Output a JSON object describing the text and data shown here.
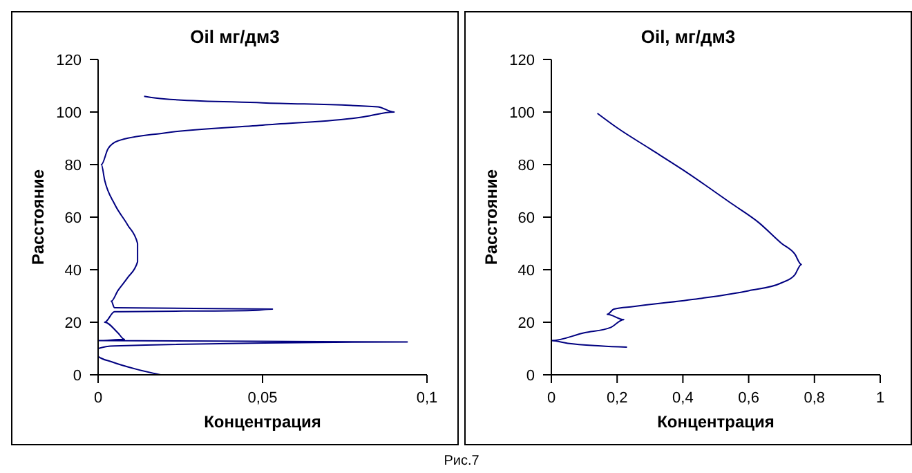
{
  "chart_data": [
    {
      "type": "line",
      "title": "Oil мг/дм3",
      "xlabel": "Концентрация",
      "ylabel": "Расстояние",
      "xlim": [
        0,
        0.1
      ],
      "xticks": [
        {
          "value": 0,
          "label": "0"
        },
        {
          "value": 0.05,
          "label": "0,05"
        },
        {
          "value": 0.1,
          "label": "0,1"
        }
      ],
      "ylim": [
        0,
        120
      ],
      "yticks": [
        {
          "value": 0,
          "label": "0"
        },
        20,
        40,
        60,
        80,
        100,
        120
      ],
      "marker": "none",
      "line_style": "solid",
      "annotations": [
        "Рис.7"
      ],
      "series": [
        {
          "color": "#000080",
          "x": [
            0.019,
            0.012,
            0.004,
            0,
            0,
            0.005,
            0.094,
            0,
            0.008,
            0.006,
            0.002,
            0.005,
            0.047,
            0.053,
            0.005,
            0.004,
            0.006,
            0.009,
            0.012,
            0.012,
            0.009,
            0.005,
            0.002,
            0.001,
            0.003,
            0.006,
            0.02,
            0.05,
            0.08,
            0.09,
            0.085,
            0.05,
            0.02,
            0.014
          ],
          "values": [
            0,
            2,
            5,
            7,
            10,
            11,
            12.5,
            13,
            13.5,
            16,
            20,
            24,
            24.5,
            25,
            25.5,
            28,
            32,
            37,
            43,
            50,
            57,
            65,
            74,
            80,
            86,
            89,
            92,
            95,
            98,
            100,
            102,
            103.5,
            105,
            106
          ]
        }
      ]
    },
    {
      "type": "line",
      "title": "Oil, мг/дм3",
      "xlabel": "Концентрация",
      "ylabel": "Расстояние",
      "xlim": [
        0,
        1
      ],
      "xticks": [
        {
          "value": 0,
          "label": "0"
        },
        {
          "value": 0.2,
          "label": "0,2"
        },
        {
          "value": 0.4,
          "label": "0,4"
        },
        {
          "value": 0.6,
          "label": "0,6"
        },
        {
          "value": 0.8,
          "label": "0,8"
        },
        1
      ],
      "ylim": [
        0,
        120
      ],
      "yticks": [
        {
          "value": 0,
          "label": "0"
        },
        20,
        40,
        60,
        80,
        100,
        120
      ],
      "marker": "none",
      "line_style": "solid",
      "series": [
        {
          "color": "#000080",
          "x": [
            0.23,
            0.15,
            0.05,
            0,
            0.1,
            0.18,
            0.22,
            0.17,
            0.19,
            0.25,
            0.45,
            0.6,
            0.7,
            0.74,
            0.76,
            0.74,
            0.7,
            0.63,
            0.55,
            0.4,
            0.3,
            0.2,
            0.14
          ],
          "values": [
            10.5,
            11,
            12,
            13,
            16,
            18,
            21,
            23,
            25,
            26,
            29,
            32,
            35,
            38,
            42,
            46,
            50,
            58,
            65,
            78,
            86,
            94,
            99.5
          ]
        }
      ]
    }
  ]
}
